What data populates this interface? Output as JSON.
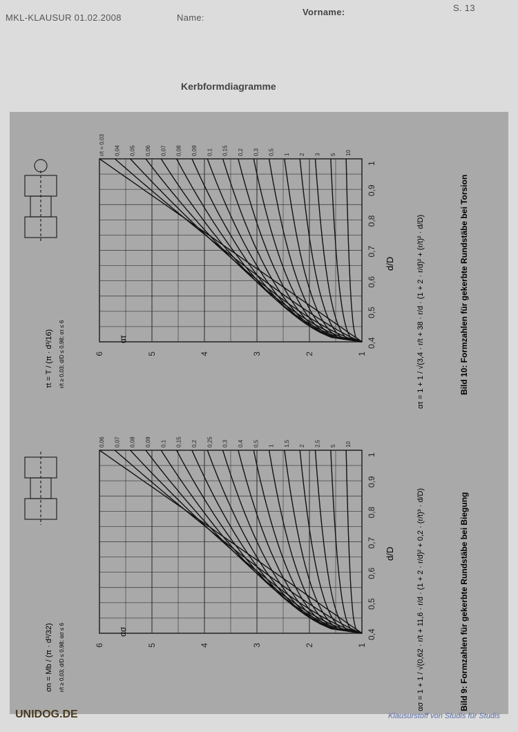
{
  "header": {
    "exam": "MKL-KLAUSUR 01.02.2008",
    "name_label": "Name:",
    "firstname_label": "Vorname:",
    "page_number": "S. 13"
  },
  "title": "Kerbformdiagramme",
  "diagram_left": {
    "formula_top": "σn = Mb / (π · d³/32)",
    "condition": "r/t ≥ 0,03; d/D ≤ 0,98; ασ ≤ 6",
    "y_axis_label": "ασ",
    "y_ticks": [
      "1",
      "2",
      "3",
      "4",
      "5",
      "6"
    ],
    "x_axis_label": "d/D",
    "x_ticks": [
      "0,4",
      "0,5",
      "0,6",
      "0,7",
      "0,8",
      "0,9",
      "1"
    ],
    "curve_labels": [
      "0,06",
      "0,07",
      "0,08",
      "0,09",
      "0,1",
      "0,15",
      "0,2",
      "0,25",
      "0,3",
      "0,4",
      "0,5",
      "1",
      "1,5",
      "2",
      "2,5",
      "5",
      "10"
    ],
    "formula_bottom": "ασ = 1 + 1 / √(0,62 · r/t + 11,6 · r/d · (1 + 2 · r/d)² + 0,2 · (r/t)³ · d/D)",
    "caption": "Bild 9:  Formzahlen für gekerbte Rundstäbe bei Biegung"
  },
  "diagram_right": {
    "formula_top": "τt = T / (π · d³/16)",
    "condition": "r/t ≥ 0,03; d/D ≤ 0,98; ατ ≤ 6",
    "y_axis_label": "ατ",
    "y_ticks": [
      "1",
      "2",
      "3",
      "4",
      "5",
      "6"
    ],
    "x_axis_label": "d/D",
    "x_ticks": [
      "0,4",
      "0,5",
      "0,6",
      "0,7",
      "0,8",
      "0,9",
      "1"
    ],
    "curve_labels": [
      "r/t = 0,03",
      "0,04",
      "0,05",
      "0,06",
      "0,07",
      "0,08",
      "0,09",
      "0,1",
      "0,15",
      "0,2",
      "0,3",
      "0,5",
      "1",
      "2",
      "3",
      "5",
      "10"
    ],
    "formula_bottom": "ατ = 1 + 1 / √(3,4 · r/t + 38 · r/d · (1 + 2 · r/d)² + (r/t)² · d/D)",
    "caption": "Bild 10:  Formzahlen für gekerbte Rundstäbe bei Torsion"
  },
  "footer": {
    "logo": "UNIDOG.DE",
    "text": "Klausurstoff von Studis für Studis"
  }
}
